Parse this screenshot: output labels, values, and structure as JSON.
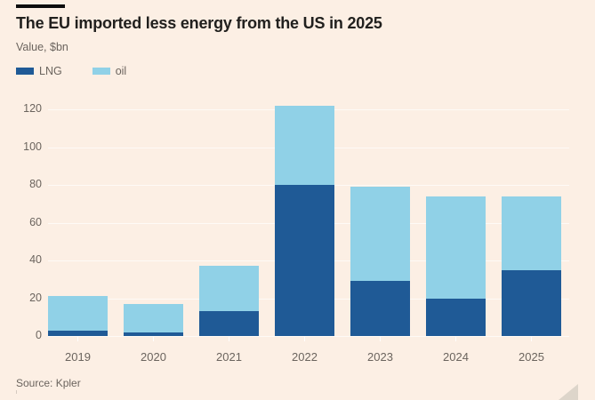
{
  "header": {
    "title": "The EU imported less energy from the US in 2025",
    "subtitle": "Value, $bn"
  },
  "legend": {
    "items": [
      {
        "label": "LNG",
        "color": "#1f5a96"
      },
      {
        "label": "oil",
        "color": "#90d1e7"
      }
    ]
  },
  "footer": {
    "source": "Source: Kpler"
  },
  "colors": {
    "background": "#fcefe4",
    "lng": "#1f5a96",
    "oil": "#90d1e7",
    "title_text": "#21201e",
    "muted_text": "#6b645e",
    "gridline": "rgba(255,255,255,0.65)"
  },
  "chart_data": {
    "type": "bar",
    "stacked": true,
    "title": "The EU imported less energy from the US in 2025",
    "subtitle": "Value, $bn",
    "ylabel": "Value, $bn",
    "categories": [
      "2019",
      "2020",
      "2021",
      "2022",
      "2023",
      "2024",
      "2025"
    ],
    "series": [
      {
        "name": "LNG",
        "color": "#1f5a96",
        "values": [
          3,
          2,
          13,
          80,
          29,
          20,
          35
        ]
      },
      {
        "name": "oil",
        "color": "#90d1e7",
        "values": [
          18,
          15,
          24,
          42,
          50,
          54,
          39
        ]
      }
    ],
    "totals": [
      21,
      17,
      37,
      122,
      79,
      74,
      74
    ],
    "yticks": [
      0,
      20,
      40,
      60,
      80,
      100,
      120
    ],
    "ylim": [
      0,
      126
    ],
    "grid": true,
    "legend_position": "top-left",
    "source": "Source: Kpler"
  }
}
